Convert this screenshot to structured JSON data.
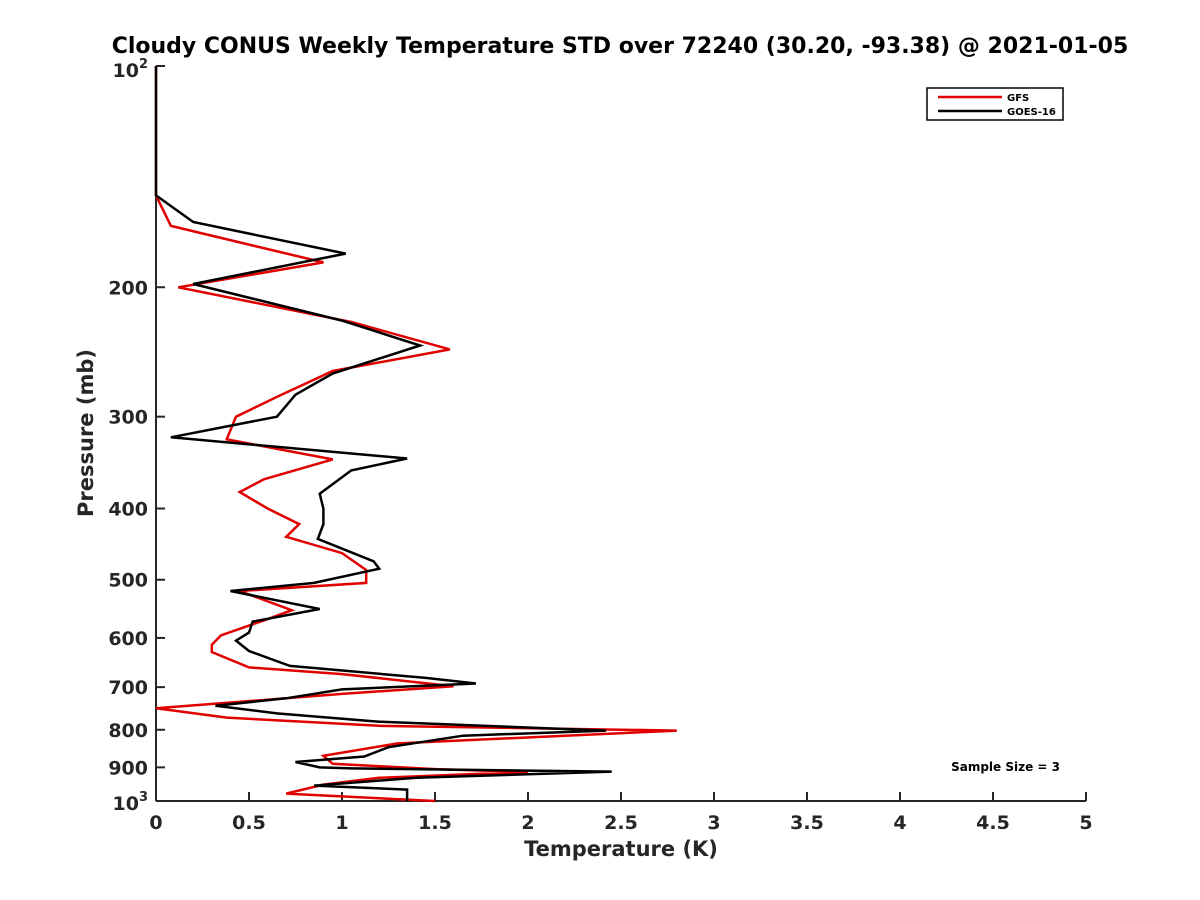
{
  "chart_data": {
    "type": "line",
    "title": "Cloudy CONUS Weekly Temperature STD over 72240 (30.20, -93.38) @ 2021-01-05",
    "xlabel": "Temperature (K)",
    "ylabel": "Pressure (mb)",
    "xlim": [
      0,
      5
    ],
    "ylim": [
      100,
      1000
    ],
    "y_scale": "log",
    "y_reversed": true,
    "grid": false,
    "legend_position": "top-right",
    "x_ticks": [
      0,
      0.5,
      1,
      1.5,
      2,
      2.5,
      3,
      3.5,
      4,
      4.5,
      5
    ],
    "x_tick_labels": [
      "0",
      "0.5",
      "1",
      "1.5",
      "2",
      "2.5",
      "3",
      "3.5",
      "4",
      "4.5",
      "5"
    ],
    "y_ticks": [
      200,
      300,
      400,
      500,
      600,
      700,
      800,
      900
    ],
    "y_tick_labels": [
      "200",
      "300",
      "400",
      "500",
      "600",
      "700",
      "800",
      "900"
    ],
    "y_tick_top": {
      "base": "10",
      "exp": "2"
    },
    "y_tick_bottom": {
      "base": "10",
      "exp": "3"
    },
    "annotation": "Sample Size = 3",
    "series": [
      {
        "name": "GFS",
        "color": "#e00000",
        "points": [
          [
            0,
            100
          ],
          [
            0,
            150
          ],
          [
            0.08,
            165
          ],
          [
            0.9,
            185
          ],
          [
            0.12,
            200
          ],
          [
            1.05,
            223
          ],
          [
            1.58,
            243
          ],
          [
            0.95,
            260
          ],
          [
            0.65,
            282
          ],
          [
            0.43,
            300
          ],
          [
            0.38,
            322
          ],
          [
            0.95,
            343
          ],
          [
            0.58,
            365
          ],
          [
            0.45,
            380
          ],
          [
            0.6,
            400
          ],
          [
            0.77,
            420
          ],
          [
            0.7,
            437
          ],
          [
            1.0,
            460
          ],
          [
            1.13,
            485
          ],
          [
            1.13,
            505
          ],
          [
            0.45,
            518
          ],
          [
            0.73,
            550
          ],
          [
            0.58,
            568
          ],
          [
            0.35,
            595
          ],
          [
            0.3,
            613
          ],
          [
            0.3,
            627
          ],
          [
            0.5,
            658
          ],
          [
            1.0,
            672
          ],
          [
            1.6,
            698
          ],
          [
            1.0,
            715
          ],
          [
            0,
            748
          ],
          [
            0.38,
            770
          ],
          [
            1.2,
            790
          ],
          [
            2.8,
            802
          ],
          [
            1.3,
            835
          ],
          [
            0.9,
            868
          ],
          [
            0.95,
            890
          ],
          [
            1.5,
            905
          ],
          [
            2.0,
            913
          ],
          [
            1.2,
            930
          ],
          [
            0.9,
            950
          ],
          [
            0.7,
            977
          ],
          [
            1.5,
            1000
          ]
        ]
      },
      {
        "name": "GOES-16",
        "color": "#000000",
        "points": [
          [
            0,
            100
          ],
          [
            0,
            150
          ],
          [
            0.2,
            163
          ],
          [
            1.02,
            180
          ],
          [
            0.2,
            198
          ],
          [
            1.0,
            222
          ],
          [
            1.42,
            240
          ],
          [
            0.95,
            262
          ],
          [
            0.75,
            280
          ],
          [
            0.65,
            300
          ],
          [
            0.08,
            320
          ],
          [
            1.35,
            342
          ],
          [
            1.05,
            355
          ],
          [
            0.88,
            382
          ],
          [
            0.9,
            400
          ],
          [
            0.9,
            420
          ],
          [
            0.87,
            440
          ],
          [
            1.17,
            472
          ],
          [
            1.2,
            483
          ],
          [
            0.85,
            505
          ],
          [
            0.4,
            518
          ],
          [
            0.88,
            548
          ],
          [
            0.52,
            570
          ],
          [
            0.5,
            590
          ],
          [
            0.43,
            605
          ],
          [
            0.5,
            625
          ],
          [
            0.72,
            655
          ],
          [
            1.45,
            680
          ],
          [
            1.72,
            692
          ],
          [
            1.0,
            705
          ],
          [
            0.7,
            725
          ],
          [
            0.32,
            742
          ],
          [
            0.65,
            760
          ],
          [
            1.2,
            780
          ],
          [
            2.42,
            802
          ],
          [
            1.65,
            815
          ],
          [
            1.25,
            845
          ],
          [
            1.12,
            870
          ],
          [
            0.75,
            885
          ],
          [
            0.88,
            900
          ],
          [
            1.05,
            903
          ],
          [
            2.45,
            912
          ],
          [
            1.4,
            930
          ],
          [
            0.85,
            953
          ],
          [
            1.35,
            965
          ],
          [
            1.35,
            1000
          ]
        ]
      }
    ]
  }
}
